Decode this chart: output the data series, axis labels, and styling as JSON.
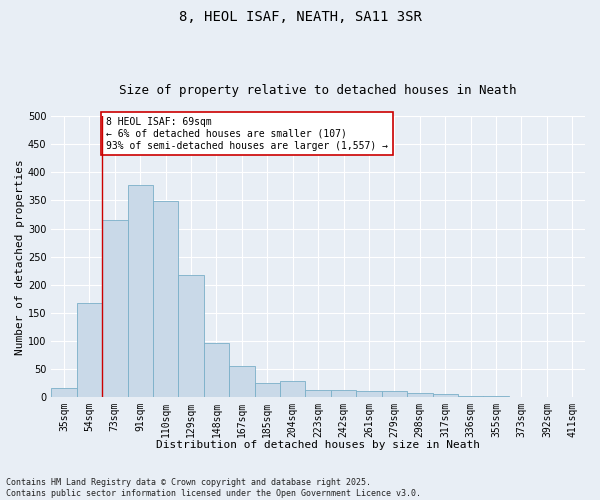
{
  "title_line1": "8, HEOL ISAF, NEATH, SA11 3SR",
  "title_line2": "Size of property relative to detached houses in Neath",
  "xlabel": "Distribution of detached houses by size in Neath",
  "ylabel": "Number of detached properties",
  "categories": [
    "35sqm",
    "54sqm",
    "73sqm",
    "91sqm",
    "110sqm",
    "129sqm",
    "148sqm",
    "167sqm",
    "185sqm",
    "204sqm",
    "223sqm",
    "242sqm",
    "261sqm",
    "279sqm",
    "298sqm",
    "317sqm",
    "336sqm",
    "355sqm",
    "373sqm",
    "392sqm",
    "411sqm"
  ],
  "values": [
    17,
    168,
    316,
    378,
    349,
    218,
    97,
    55,
    25,
    28,
    13,
    13,
    10,
    10,
    7,
    5,
    2,
    2,
    1,
    1,
    1
  ],
  "bar_color": "#c9d9e8",
  "bar_edge_color": "#7aafc8",
  "vline_x_idx": 1.5,
  "vline_color": "#cc0000",
  "annotation_text": "8 HEOL ISAF: 69sqm\n← 6% of detached houses are smaller (107)\n93% of semi-detached houses are larger (1,557) →",
  "annotation_box_color": "#ffffff",
  "annotation_box_edge": "#cc0000",
  "ylim": [
    0,
    500
  ],
  "yticks": [
    0,
    50,
    100,
    150,
    200,
    250,
    300,
    350,
    400,
    450,
    500
  ],
  "footer": "Contains HM Land Registry data © Crown copyright and database right 2025.\nContains public sector information licensed under the Open Government Licence v3.0.",
  "background_color": "#e8eef5",
  "plot_background": "#e8eef5",
  "grid_color": "#ffffff",
  "title_fontsize": 10,
  "subtitle_fontsize": 9,
  "label_fontsize": 8,
  "tick_fontsize": 7,
  "annot_fontsize": 7,
  "footer_fontsize": 6
}
